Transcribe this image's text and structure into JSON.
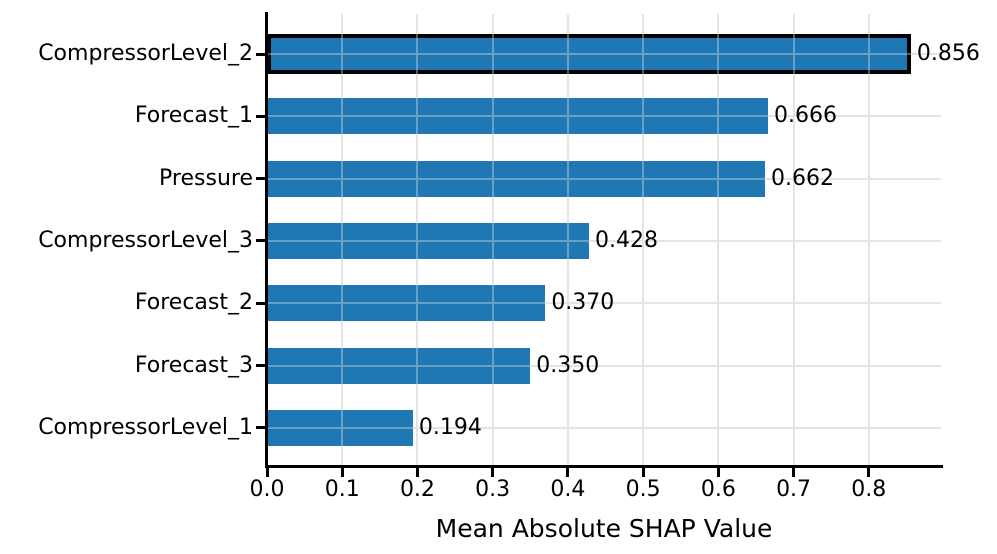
{
  "chart_data": {
    "type": "bar",
    "orientation": "horizontal",
    "title": "",
    "xlabel": "Mean Absolute SHAP Value",
    "ylabel": "",
    "categories": [
      "CompressorLevel_2",
      "Forecast_1",
      "Pressure",
      "CompressorLevel_3",
      "Forecast_2",
      "Forecast_3",
      "CompressorLevel_1"
    ],
    "values": [
      0.856,
      0.666,
      0.662,
      0.428,
      0.37,
      0.35,
      0.194
    ],
    "value_labels": [
      "0.856",
      "0.666",
      "0.662",
      "0.428",
      "0.370",
      "0.350",
      "0.194"
    ],
    "highlighted_index": 0,
    "highlighted_category": "CompressorLevel_2",
    "x_ticks": [
      "0.0",
      "0.1",
      "0.2",
      "0.3",
      "0.4",
      "0.5",
      "0.6",
      "0.7",
      "0.8"
    ],
    "x_tick_values": [
      0.0,
      0.1,
      0.2,
      0.3,
      0.4,
      0.5,
      0.6,
      0.7,
      0.8
    ],
    "xlim": [
      0.0,
      0.896
    ],
    "grid": true,
    "legend": false,
    "bar_color": "#1f77b4",
    "highlight_edge_color": "#000000",
    "gridline_color": "#e4e4e4",
    "axis_color": "#000000"
  }
}
